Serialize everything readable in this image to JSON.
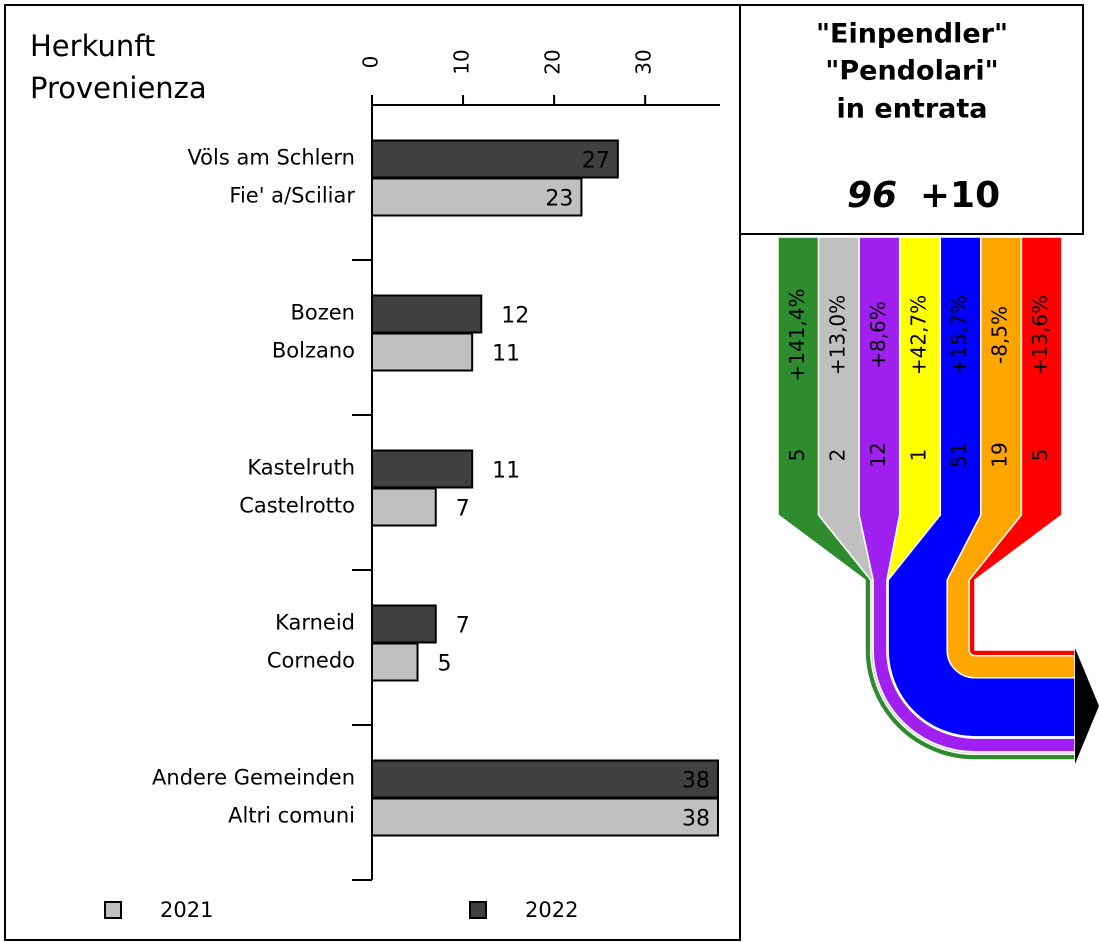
{
  "chart_data": [
    {
      "type": "bar",
      "category_label": [
        "Herkunft",
        "Provenienza"
      ],
      "categories": [
        [
          "Völs am Schlern",
          "Fie' a/Sciliar"
        ],
        [
          "Bozen",
          "Bolzano"
        ],
        [
          "Kastelruth",
          "Castelrotto"
        ],
        [
          "Karneid",
          "Cornedo"
        ],
        [
          "Andere Gemeinden",
          "Altri comuni"
        ]
      ],
      "series": [
        {
          "name": "2021",
          "color": "#c0c0c0",
          "values": [
            23,
            11,
            7,
            5,
            38
          ]
        },
        {
          "name": "2022",
          "color": "#404040",
          "values": [
            27,
            12,
            11,
            7,
            38
          ]
        }
      ],
      "xlim": [
        0,
        38
      ],
      "xticks": [
        0,
        10,
        20,
        30
      ],
      "legend": "bottom"
    },
    {
      "type": "flow",
      "title": [
        "\"Einpendler\"",
        "\"Pendolari\"",
        "in entrata"
      ],
      "total": 96,
      "change": {
        "value": 10,
        "label": "+10"
      },
      "streams": {
        "colors": [
          "#2e8b2e",
          "#c0c0c0",
          "#a020f0",
          "#ffff00",
          "#0000ff",
          "#ffa500",
          "#ff0000"
        ],
        "values": [
          5,
          2,
          12,
          1,
          51,
          19,
          5
        ],
        "changes": [
          141.4,
          13.0,
          8.6,
          42.7,
          15.7,
          -8.5,
          13.6
        ],
        "change_labels": [
          "+141,4%",
          "+13,0%",
          "+8,6%",
          "+42,7%",
          "+15,7%",
          "-8,5%",
          "+13,6%"
        ]
      },
      "arrow_color": "#000000"
    }
  ]
}
